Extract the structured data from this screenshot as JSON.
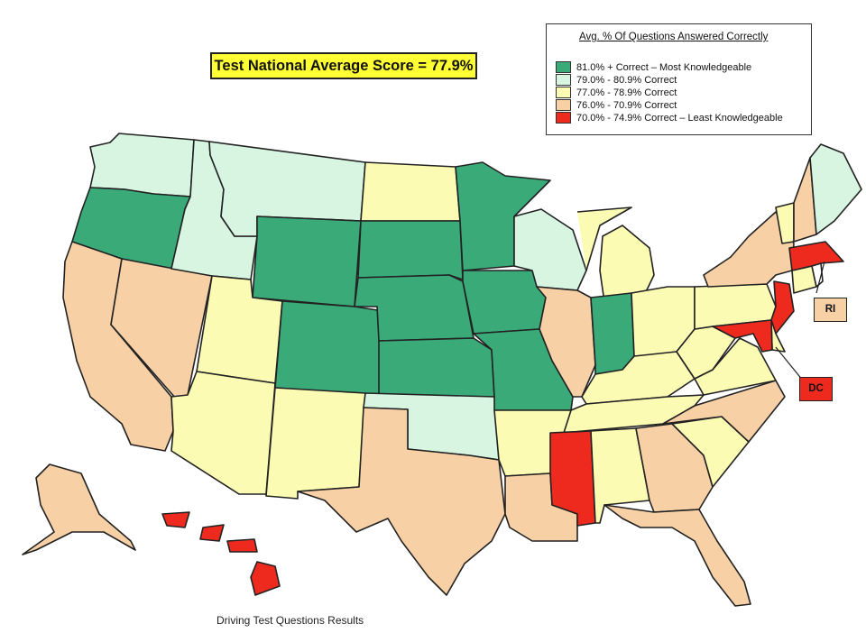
{
  "title": "Test National Average Score = 77.9%",
  "legend": {
    "title": "Avg. % Of Questions Answered Correctly",
    "items": [
      {
        "label": "81.0% + Correct – Most Knowledgeable",
        "color": "#3aaa79"
      },
      {
        "label": "79.0% - 80.9% Correct",
        "color": "#d7f5e1"
      },
      {
        "label": "77.0% - 78.9% Correct",
        "color": "#fcfbb4"
      },
      {
        "label": "76.0% - 70.9% Correct",
        "color": "#f7d0a6"
      },
      {
        "label": "70.0% - 74.9% Correct – Least Knowledgeable",
        "color": "#ee2a1f"
      }
    ]
  },
  "callouts": {
    "ri": {
      "label": "RI",
      "color": "#f7d0a6"
    },
    "dc": {
      "label": "DC",
      "color": "#ee2a1f"
    }
  },
  "footer": "Driving Test Questions Results",
  "states": {
    "WA": "light",
    "OR": "green",
    "CA": "tan",
    "NV": "tan",
    "ID": "light",
    "MT": "light",
    "WY": "green",
    "UT": "yellow",
    "AZ": "yellow",
    "CO": "green",
    "NM": "yellow",
    "ND": "yellow",
    "SD": "green",
    "NE": "green",
    "KS": "green",
    "OK": "light",
    "TX": "tan",
    "MN": "green",
    "IA": "green",
    "MO": "green",
    "AR": "yellow",
    "LA": "tan",
    "WI": "light",
    "IL": "tan",
    "MI": "yellow",
    "IN": "green",
    "OH": "yellow",
    "KY": "yellow",
    "TN": "yellow",
    "MS": "red",
    "AL": "yellow",
    "GA": "tan",
    "FL": "tan",
    "SC": "yellow",
    "NC": "tan",
    "VA": "yellow",
    "WV": "yellow",
    "PA": "yellow",
    "NY": "tan",
    "NJ": "red",
    "DE": "yellow",
    "MD": "red",
    "CT": "yellow",
    "MA": "red",
    "VT": "yellow",
    "NH": "tan",
    "ME": "light",
    "AK": "tan",
    "HI": "red"
  }
}
